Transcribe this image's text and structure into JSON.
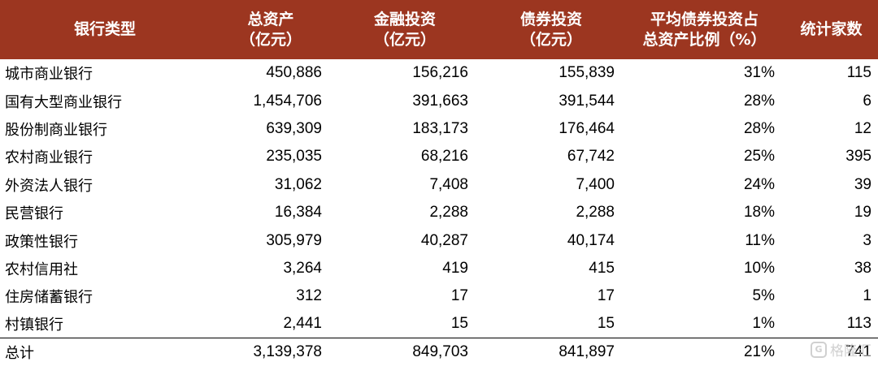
{
  "table": {
    "headers": [
      [
        "银行类型"
      ],
      [
        "总资产",
        "（亿元）"
      ],
      [
        "金融投资",
        "（亿元）"
      ],
      [
        "债券投资",
        "（亿元）"
      ],
      [
        "平均债券投资占",
        "总资产比例（%）"
      ],
      [
        "统计家数"
      ]
    ],
    "rows": [
      [
        "城市商业银行",
        "450,886",
        "156,216",
        "155,839",
        "31%",
        "115"
      ],
      [
        "国有大型商业银行",
        "1,454,706",
        "391,663",
        "391,544",
        "28%",
        "6"
      ],
      [
        "股份制商业银行",
        "639,309",
        "183,173",
        "176,464",
        "28%",
        "12"
      ],
      [
        "农村商业银行",
        "235,035",
        "68,216",
        "67,742",
        "25%",
        "395"
      ],
      [
        "外资法人银行",
        "31,062",
        "7,408",
        "7,400",
        "24%",
        "39"
      ],
      [
        "民营银行",
        "16,384",
        "2,288",
        "2,288",
        "18%",
        "19"
      ],
      [
        "政策性银行",
        "305,979",
        "40,287",
        "40,174",
        "11%",
        "3"
      ],
      [
        "农村信用社",
        "3,264",
        "419",
        "415",
        "10%",
        "38"
      ],
      [
        "住房储蓄银行",
        "312",
        "17",
        "17",
        "5%",
        "1"
      ],
      [
        "村镇银行",
        "2,441",
        "15",
        "15",
        "1%",
        "113"
      ]
    ],
    "total": [
      "总计",
      "3,139,378",
      "849,703",
      "841,897",
      "21%",
      "741"
    ]
  },
  "watermark": {
    "icon": "gelonghui-logo-icon",
    "logo_glyph": "G",
    "text": "格隆汇"
  }
}
